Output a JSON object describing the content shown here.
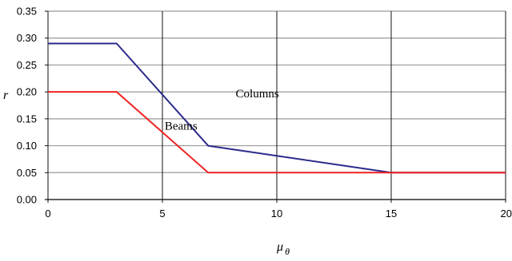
{
  "chart_data": {
    "type": "line",
    "title": "",
    "xlabel": "μ_θ",
    "ylabel": "r",
    "xlim": [
      0,
      20
    ],
    "ylim": [
      0,
      0.35
    ],
    "x_ticks": [
      "0",
      "5",
      "10",
      "15",
      "20"
    ],
    "y_ticks": [
      "0.00",
      "0.05",
      "0.10",
      "0.15",
      "0.20",
      "0.25",
      "0.30",
      "0.35"
    ],
    "grid": "on",
    "series": [
      {
        "name": "Columns",
        "color": "#2b2b8c",
        "x": [
          0,
          3,
          7,
          15,
          20
        ],
        "y": [
          0.29,
          0.29,
          0.1,
          0.05,
          0.05
        ]
      },
      {
        "name": "Beams",
        "color": "#ee2222",
        "x": [
          0,
          3,
          7,
          15,
          20
        ],
        "y": [
          0.2,
          0.2,
          0.05,
          0.05,
          0.05
        ]
      }
    ],
    "annotations": [
      {
        "text": "Columns",
        "x": 8.2,
        "y": 0.19
      },
      {
        "text": "Beams",
        "x": 5.1,
        "y": 0.13
      }
    ]
  }
}
